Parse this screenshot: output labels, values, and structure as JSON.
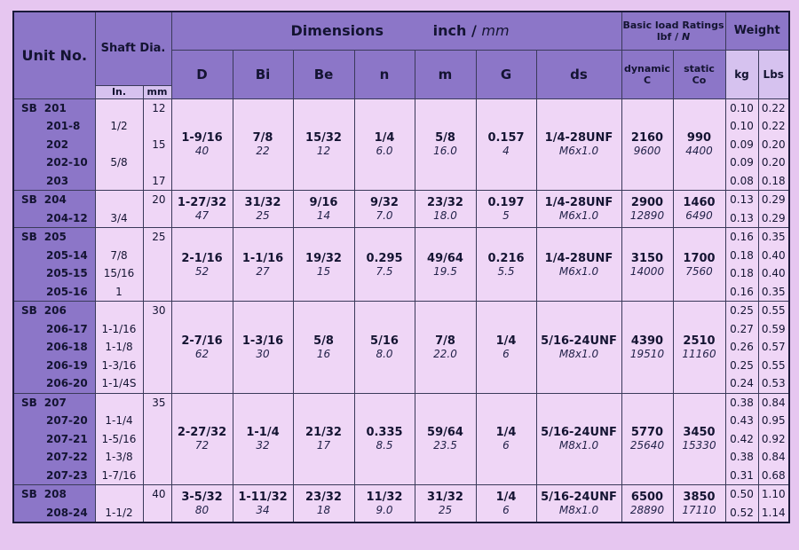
{
  "headers": {
    "unit_no": "Unit No.",
    "shaft_dia": "Shaft Dia.",
    "shaft_in": "In.",
    "shaft_mm": "mm",
    "dimensions": "Dimensions",
    "units_inch": "inch /",
    "units_mm": "mm",
    "ratings_line1": "Basic load Ratings",
    "ratings_line2": "lbf /",
    "ratings_n": "N",
    "weight": "Weight",
    "col_D": "D",
    "col_Bi": "Bi",
    "col_Be": "Be",
    "col_n": "n",
    "col_m": "m",
    "col_G": "G",
    "col_ds": "ds",
    "dynamic_1": "dynamic",
    "dynamic_2": "C",
    "static_1": "static",
    "static_2": "Co",
    "kg": "kg",
    "lbs": "Lbs"
  },
  "groups": [
    {
      "prefix": "SB",
      "units": [
        "201",
        "201-8",
        "202",
        "202-10",
        "203"
      ],
      "inch": [
        "",
        "1/2",
        "",
        "5/8",
        ""
      ],
      "mm": [
        "12",
        "",
        "15",
        "",
        "17"
      ],
      "D": {
        "in": "1-9/16",
        "mm": "40"
      },
      "Bi": {
        "in": "7/8",
        "mm": "22"
      },
      "Be": {
        "in": "15/32",
        "mm": "12"
      },
      "n": {
        "in": "1/4",
        "mm": "6.0"
      },
      "m": {
        "in": "5/8",
        "mm": "16.0"
      },
      "G": {
        "in": "0.157",
        "mm": "4"
      },
      "ds": {
        "in": "1/4-28UNF",
        "mm": "M6x1.0"
      },
      "dynamic": {
        "lbf": "2160",
        "n": "9600"
      },
      "static": {
        "lbf": "990",
        "n": "4400"
      },
      "kg": [
        "0.10",
        "0.10",
        "0.09",
        "0.09",
        "0.08"
      ],
      "lbs": [
        "0.22",
        "0.22",
        "0.20",
        "0.20",
        "0.18"
      ]
    },
    {
      "prefix": "SB",
      "units": [
        "204",
        "204-12"
      ],
      "inch": [
        "",
        "3/4"
      ],
      "mm": [
        "20",
        ""
      ],
      "D": {
        "in": "1-27/32",
        "mm": "47"
      },
      "Bi": {
        "in": "31/32",
        "mm": "25"
      },
      "Be": {
        "in": "9/16",
        "mm": "14"
      },
      "n": {
        "in": "9/32",
        "mm": "7.0"
      },
      "m": {
        "in": "23/32",
        "mm": "18.0"
      },
      "G": {
        "in": "0.197",
        "mm": "5"
      },
      "ds": {
        "in": "1/4-28UNF",
        "mm": "M6x1.0"
      },
      "dynamic": {
        "lbf": "2900",
        "n": "12890"
      },
      "static": {
        "lbf": "1460",
        "n": "6490"
      },
      "kg": [
        "0.13",
        "0.13"
      ],
      "lbs": [
        "0.29",
        "0.29"
      ]
    },
    {
      "prefix": "SB",
      "units": [
        "205",
        "205-14",
        "205-15",
        "205-16"
      ],
      "inch": [
        "",
        "7/8",
        "15/16",
        "1"
      ],
      "mm": [
        "25",
        "",
        "",
        ""
      ],
      "D": {
        "in": "2-1/16",
        "mm": "52"
      },
      "Bi": {
        "in": "1-1/16",
        "mm": "27"
      },
      "Be": {
        "in": "19/32",
        "mm": "15"
      },
      "n": {
        "in": "0.295",
        "mm": "7.5"
      },
      "m": {
        "in": "49/64",
        "mm": "19.5"
      },
      "G": {
        "in": "0.216",
        "mm": "5.5"
      },
      "ds": {
        "in": "1/4-28UNF",
        "mm": "M6x1.0"
      },
      "dynamic": {
        "lbf": "3150",
        "n": "14000"
      },
      "static": {
        "lbf": "1700",
        "n": "7560"
      },
      "kg": [
        "0.16",
        "0.18",
        "0.18",
        "0.16"
      ],
      "lbs": [
        "0.35",
        "0.40",
        "0.40",
        "0.35"
      ]
    },
    {
      "prefix": "SB",
      "units": [
        "206",
        "206-17",
        "206-18",
        "206-19",
        "206-20"
      ],
      "inch": [
        "",
        "1-1/16",
        "1-1/8",
        "1-3/16",
        "1-1/4S"
      ],
      "mm": [
        "30",
        "",
        "",
        "",
        ""
      ],
      "D": {
        "in": "2-7/16",
        "mm": "62"
      },
      "Bi": {
        "in": "1-3/16",
        "mm": "30"
      },
      "Be": {
        "in": "5/8",
        "mm": "16"
      },
      "n": {
        "in": "5/16",
        "mm": "8.0"
      },
      "m": {
        "in": "7/8",
        "mm": "22.0"
      },
      "G": {
        "in": "1/4",
        "mm": "6"
      },
      "ds": {
        "in": "5/16-24UNF",
        "mm": "M8x1.0"
      },
      "dynamic": {
        "lbf": "4390",
        "n": "19510"
      },
      "static": {
        "lbf": "2510",
        "n": "11160"
      },
      "kg": [
        "0.25",
        "0.27",
        "0.26",
        "0.25",
        "0.24"
      ],
      "lbs": [
        "0.55",
        "0.59",
        "0.57",
        "0.55",
        "0.53"
      ]
    },
    {
      "prefix": "SB",
      "units": [
        "207",
        "207-20",
        "207-21",
        "207-22",
        "207-23"
      ],
      "inch": [
        "",
        "1-1/4",
        "1-5/16",
        "1-3/8",
        "1-7/16"
      ],
      "mm": [
        "35",
        "",
        "",
        "",
        ""
      ],
      "D": {
        "in": "2-27/32",
        "mm": "72"
      },
      "Bi": {
        "in": "1-1/4",
        "mm": "32"
      },
      "Be": {
        "in": "21/32",
        "mm": "17"
      },
      "n": {
        "in": "0.335",
        "mm": "8.5"
      },
      "m": {
        "in": "59/64",
        "mm": "23.5"
      },
      "G": {
        "in": "1/4",
        "mm": "6"
      },
      "ds": {
        "in": "5/16-24UNF",
        "mm": "M8x1.0"
      },
      "dynamic": {
        "lbf": "5770",
        "n": "25640"
      },
      "static": {
        "lbf": "3450",
        "n": "15330"
      },
      "kg": [
        "0.38",
        "0.43",
        "0.42",
        "0.38",
        "0.31"
      ],
      "lbs": [
        "0.84",
        "0.95",
        "0.92",
        "0.84",
        "0.68"
      ]
    },
    {
      "prefix": "SB",
      "units": [
        "208",
        "208-24"
      ],
      "inch": [
        "",
        "1-1/2"
      ],
      "mm": [
        "40",
        ""
      ],
      "D": {
        "in": "3-5/32",
        "mm": "80"
      },
      "Bi": {
        "in": "1-11/32",
        "mm": "34"
      },
      "Be": {
        "in": "23/32",
        "mm": "18"
      },
      "n": {
        "in": "11/32",
        "mm": "9.0"
      },
      "m": {
        "in": "31/32",
        "mm": "25"
      },
      "G": {
        "in": "1/4",
        "mm": "6"
      },
      "ds": {
        "in": "5/16-24UNF",
        "mm": "M8x1.0"
      },
      "dynamic": {
        "lbf": "6500",
        "n": "28890"
      },
      "static": {
        "lbf": "3850",
        "n": "17110"
      },
      "kg": [
        "0.50",
        "0.52"
      ],
      "lbs": [
        "1.10",
        "1.14"
      ]
    }
  ]
}
